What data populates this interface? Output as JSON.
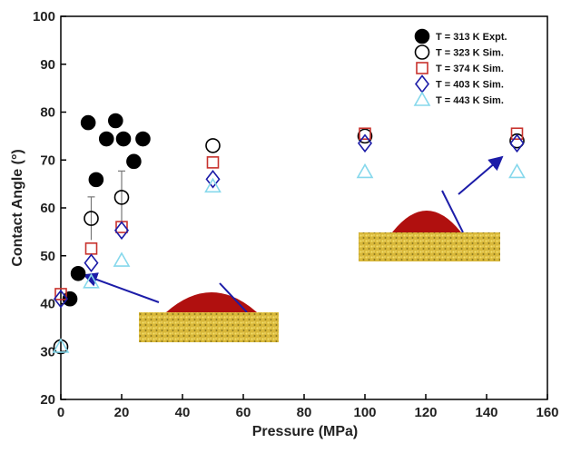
{
  "chart_data": {
    "type": "scatter",
    "x_label": "Pressure (MPa)",
    "y_label": "Contact Angle (°)",
    "xlim": [
      0,
      160
    ],
    "xticks": [
      0,
      20,
      40,
      60,
      80,
      100,
      120,
      140,
      160
    ],
    "ylim": [
      20,
      100
    ],
    "yticks": [
      20,
      30,
      40,
      50,
      60,
      70,
      80,
      90,
      100
    ],
    "legend": "upper right",
    "series": [
      {
        "name": "T = 313 K Expt.",
        "color": "#000000",
        "marker": "filled-circle",
        "x": [
          3,
          5.7,
          9,
          11.6,
          15,
          18,
          20.6,
          24,
          27
        ],
        "values": [
          41,
          46.3,
          77.8,
          65.9,
          74.4,
          78.2,
          74.4,
          69.7,
          74.4
        ]
      },
      {
        "name": "T = 323 K Sim.",
        "color": "#000000",
        "marker": "circle",
        "x": [
          0,
          10,
          20,
          50,
          100,
          150
        ],
        "values": [
          31,
          57.8,
          62.2,
          73,
          75,
          74
        ],
        "errors": [
          null,
          4.5,
          5.5,
          null,
          null,
          null
        ]
      },
      {
        "name": "T = 374 K Sim.",
        "color": "#c8322d",
        "marker": "square",
        "x": [
          0,
          10,
          20,
          50,
          100,
          150
        ],
        "values": [
          42,
          51.5,
          56,
          69.5,
          75.5,
          75.5
        ]
      },
      {
        "name": "T = 403 K Sim.",
        "color": "#1c1ca8",
        "marker": "diamond",
        "x": [
          0,
          10,
          20,
          50,
          100,
          150
        ],
        "values": [
          41,
          48.5,
          55.3,
          66,
          73.5,
          73.5
        ]
      },
      {
        "name": "T = 443 K Sim.",
        "color": "#86d8ec",
        "marker": "triangle",
        "x": [
          0,
          10,
          20,
          50,
          100,
          150
        ],
        "values": [
          31,
          44.5,
          49,
          64.5,
          67.5,
          67.5
        ]
      }
    ]
  }
}
